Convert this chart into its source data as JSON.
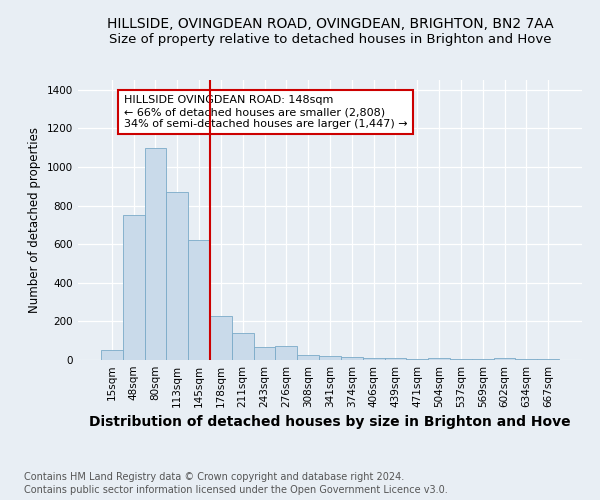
{
  "title": "HILLSIDE, OVINGDEAN ROAD, OVINGDEAN, BRIGHTON, BN2 7AA",
  "subtitle": "Size of property relative to detached houses in Brighton and Hove",
  "xlabel": "Distribution of detached houses by size in Brighton and Hove",
  "ylabel": "Number of detached properties",
  "footer1": "Contains HM Land Registry data © Crown copyright and database right 2024.",
  "footer2": "Contains public sector information licensed under the Open Government Licence v3.0.",
  "categories": [
    "15sqm",
    "48sqm",
    "80sqm",
    "113sqm",
    "145sqm",
    "178sqm",
    "211sqm",
    "243sqm",
    "276sqm",
    "308sqm",
    "341sqm",
    "374sqm",
    "406sqm",
    "439sqm",
    "471sqm",
    "504sqm",
    "537sqm",
    "569sqm",
    "602sqm",
    "634sqm",
    "667sqm"
  ],
  "values": [
    50,
    750,
    1100,
    870,
    620,
    230,
    140,
    65,
    75,
    25,
    20,
    15,
    10,
    8,
    5,
    12,
    3,
    3,
    8,
    3,
    5
  ],
  "bar_color": "#c9daea",
  "bar_edge_color": "#7aaac8",
  "vline_x_index": 4,
  "vline_color": "#cc0000",
  "annotation_text": "HILLSIDE OVINGDEAN ROAD: 148sqm\n← 66% of detached houses are smaller (2,808)\n34% of semi-detached houses are larger (1,447) →",
  "annotation_box_color": "white",
  "annotation_box_edge": "#cc0000",
  "ylim": [
    0,
    1450
  ],
  "yticks": [
    0,
    200,
    400,
    600,
    800,
    1000,
    1200,
    1400
  ],
  "background_color": "#e8eef4",
  "plot_bg_color": "#e8eef4",
  "title_fontsize": 10,
  "subtitle_fontsize": 9.5,
  "xlabel_fontsize": 10,
  "ylabel_fontsize": 8.5,
  "tick_fontsize": 7.5,
  "annot_fontsize": 8,
  "footer_fontsize": 7
}
